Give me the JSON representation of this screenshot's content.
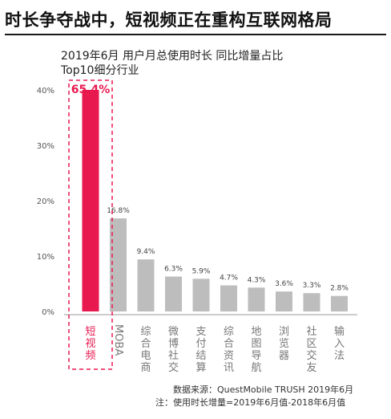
{
  "headline": "时长争夺战中，短视频正在重构互联网格局",
  "chart_data": {
    "type": "bar",
    "title_line1": "2019年6月 用户月总使用时长 同比增量占比",
    "title_line2": "Top10细分行业",
    "categories": [
      "短视频",
      "MOBA",
      "综合电商",
      "微博社交",
      "支付结算",
      "综合资讯",
      "地图导航",
      "浏览器",
      "社区交友",
      "输入法"
    ],
    "values": [
      65.4,
      16.8,
      9.4,
      6.3,
      5.9,
      4.7,
      4.3,
      3.6,
      3.3,
      2.8
    ],
    "value_labels": [
      "65.4%",
      "16.8%",
      "9.4%",
      "6.3%",
      "5.9%",
      "4.7%",
      "4.3%",
      "3.6%",
      "3.3%",
      "2.8%"
    ],
    "y_ticks": [
      "0%",
      "10%",
      "20%",
      "30%",
      "40%"
    ],
    "ylim": [
      0,
      40
    ],
    "highlight_index": 0,
    "colors": {
      "highlight": "#e8194f",
      "bar": "#bdbdbd",
      "axis": "#888888"
    },
    "grid": false
  },
  "source_line1": "数据来源：QuestMobile TRUSH 2019年6月",
  "source_line2": "注：使用时长增量=2019年6月值-2018年6月值"
}
